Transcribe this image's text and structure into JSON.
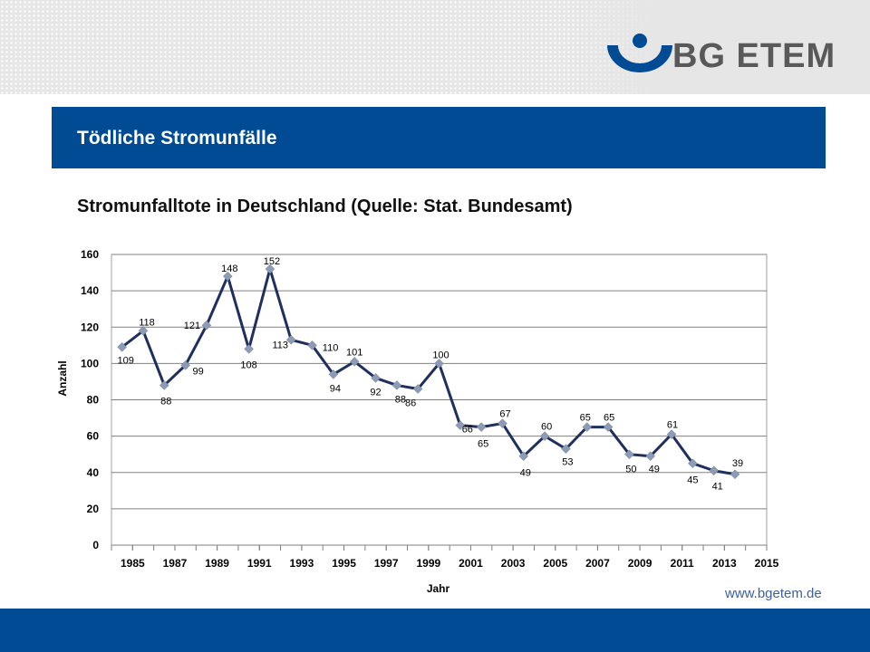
{
  "header": {
    "brand": "BG ETEM",
    "title": "Tödliche Stromunfälle"
  },
  "footer": {
    "url": "www.bgetem.de"
  },
  "colors": {
    "brand_blue": "#004b93",
    "line": "#1f2f5e",
    "marker": "#8d9bb5",
    "grid": "#808080"
  },
  "chart_data": {
    "type": "line",
    "title": "Stromunfalltote in Deutschland (Quelle: Stat. Bundesamt)",
    "xlabel": "Jahr",
    "ylabel": "Anzahl",
    "xlim": [
      1984,
      2015
    ],
    "ylim": [
      0,
      160
    ],
    "y_ticks": [
      "0",
      "20",
      "40",
      "60",
      "80",
      "100",
      "120",
      "140",
      "160"
    ],
    "x_ticks": [
      "1985",
      "1987",
      "1989",
      "1991",
      "1993",
      "1995",
      "1997",
      "1999",
      "2001",
      "2003",
      "2005",
      "2007",
      "2009",
      "2011",
      "2013",
      "2015"
    ],
    "grid": true,
    "legend": "none",
    "series": [
      {
        "x": [
          1984.5,
          1985.5,
          1986.5,
          1987.5,
          1988.5,
          1989.5,
          1990.5,
          1991.5,
          1992.5,
          1993.5,
          1994.5,
          1995.5,
          1996.5,
          1997.5,
          1998.5,
          1999.5,
          2000.5,
          2001.5,
          2002.5,
          2003.5,
          2004.5,
          2005.5,
          2006.5,
          2007.5,
          2008.5,
          2009.5,
          2010.5,
          2011.5,
          2012.5,
          2013.5
        ],
        "values": [
          109,
          118,
          88,
          99,
          121,
          148,
          108,
          152,
          113,
          110,
          94,
          101,
          92,
          88,
          86,
          100,
          66,
          65,
          67,
          49,
          60,
          53,
          65,
          65,
          50,
          49,
          61,
          45,
          41,
          39
        ]
      }
    ]
  }
}
